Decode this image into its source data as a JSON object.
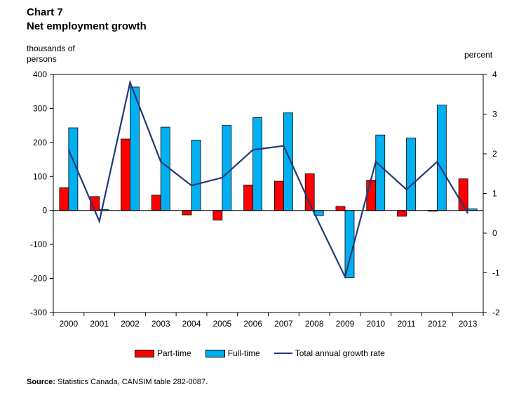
{
  "chart_data": {
    "type": "bar",
    "title_line1": "Chart 7",
    "title_line2": "Net employment growth",
    "ylabel_left": "thousands of persons",
    "ylabel_left_1": "thousands of",
    "ylabel_left_2": "persons",
    "ylabel_right": "percent",
    "categories": [
      "2000",
      "2001",
      "2002",
      "2003",
      "2004",
      "2005",
      "2006",
      "2007",
      "2008",
      "2009",
      "2010",
      "2011",
      "2012",
      "2013"
    ],
    "ylim": [
      -300,
      400
    ],
    "yticks": [
      -300,
      -200,
      -100,
      0,
      100,
      200,
      300,
      400
    ],
    "y2lim": [
      -2,
      4
    ],
    "y2ticks": [
      -2,
      -1,
      0,
      1,
      2,
      3,
      4
    ],
    "series": [
      {
        "name": "Part-time",
        "axis": "left",
        "kind": "bar",
        "color": "#ff0000",
        "values": [
          67,
          41,
          210,
          45,
          -13,
          -28,
          75,
          86,
          108,
          12,
          89,
          -17,
          -2,
          93
        ]
      },
      {
        "name": "Full-time",
        "axis": "left",
        "kind": "bar",
        "color": "#00b0f0",
        "values": [
          243,
          3,
          363,
          245,
          207,
          250,
          273,
          287,
          -15,
          -198,
          222,
          213,
          310,
          5
        ]
      },
      {
        "name": "Total annual growth rate",
        "axis": "right",
        "kind": "line",
        "color": "#1f3a7a",
        "values": [
          2.1,
          0.3,
          3.8,
          1.8,
          1.2,
          1.4,
          2.1,
          2.2,
          0.5,
          -1.1,
          1.8,
          1.1,
          1.8,
          0.5
        ]
      }
    ],
    "legend": [
      "Part-time",
      "Full-time",
      "Total annual growth rate"
    ],
    "legend_position": "bottom"
  },
  "source_label": "Source:",
  "source_text": " Statistics Canada, CANSIM table 282-0087."
}
